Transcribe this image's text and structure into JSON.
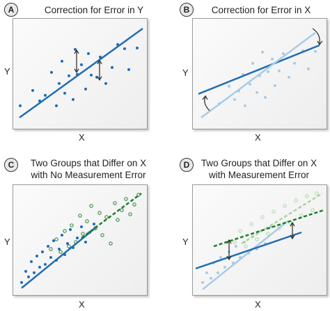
{
  "panels": {
    "a": {
      "badge": "A",
      "title": "Correction for Error in Y",
      "y_label": "Y",
      "x_label": "X"
    },
    "b": {
      "badge": "B",
      "title": "Correction for Error in X",
      "y_label": "Y",
      "x_label": "X"
    },
    "c": {
      "badge": "C",
      "title_line1": "Two Groups that Differ on X",
      "title_line2": "with No Measurement Error",
      "y_label": "Y",
      "x_label": "X"
    },
    "d": {
      "badge": "D",
      "title_line1": "Two Groups that Differ on X",
      "title_line2": "with Measurement Error",
      "y_label": "Y",
      "x_label": "X"
    }
  },
  "colors": {
    "dark_blue": "#1f6db5",
    "light_blue": "#a9cbe8",
    "dark_green": "#1e7d2c",
    "light_green": "#a9d6a0",
    "arrow": "#333333"
  }
}
